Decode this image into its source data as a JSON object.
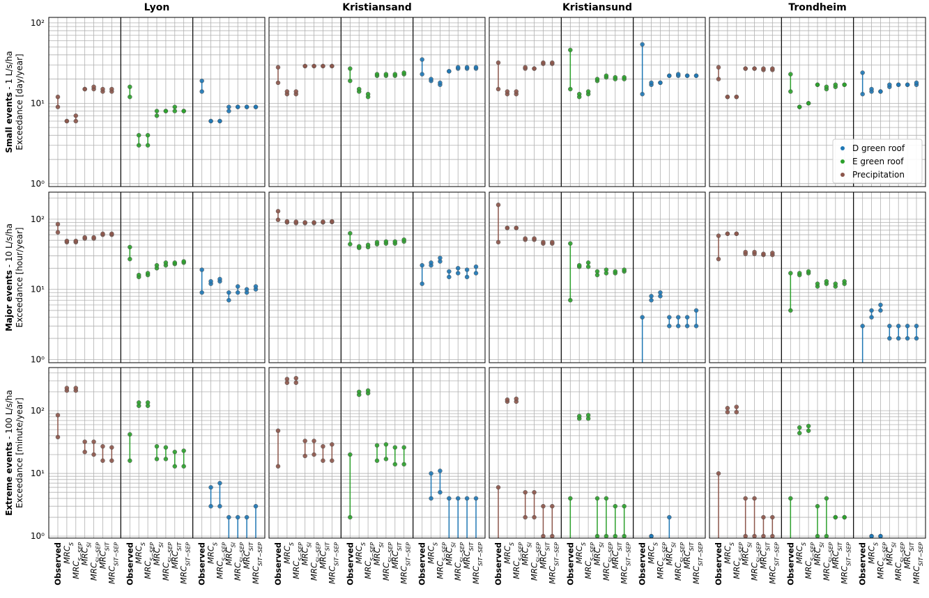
{
  "chart_data": {
    "type": "range",
    "yscale": "log",
    "grid": true,
    "legend": "lower right",
    "cities": [
      "Lyon",
      "Kristiansand",
      "Kristiansund",
      "Trondheim"
    ],
    "categories": [
      {
        "main": "Observed"
      },
      {
        "main": "MRC",
        "sub": "S"
      },
      {
        "main": "MRC",
        "sub": "S−SEP"
      },
      {
        "main": "MRC",
        "sub": "SI"
      },
      {
        "main": "MRC",
        "sub": "SI−SEP"
      },
      {
        "main": "MRC",
        "sub": "SIT"
      },
      {
        "main": "MRC",
        "sub": "SIT−SEP"
      }
    ],
    "series": [
      {
        "name": "D green roof",
        "color": "#1f77b4"
      },
      {
        "name": "E green roof",
        "color": "#2ca02c"
      },
      {
        "name": "Precipitation",
        "color": "#8c564b"
      }
    ],
    "yminorticks": [
      2,
      3,
      4,
      5,
      6,
      7,
      8,
      9,
      20,
      30,
      40,
      50,
      60,
      70,
      80,
      90,
      200,
      300,
      400,
      500,
      600,
      700,
      800,
      900
    ],
    "rows": [
      {
        "title_bold": "Small events",
        "title_rest": " - 1 L/s/ha",
        "ylabel": "Exceedance [day/year]",
        "ylim": [
          0.92,
          117
        ],
        "yticks": [
          {
            "value": 1,
            "label": "10⁰"
          },
          {
            "value": 10,
            "label": "10¹"
          },
          {
            "value": 100,
            "label": "10²"
          }
        ],
        "data": [
          [
            {
              "low": [
                14,
                6,
                6,
                8,
                9,
                9,
                9
              ],
              "high": [
                19,
                6,
                6,
                9,
                9,
                9,
                9
              ]
            },
            {
              "low": [
                12,
                3,
                3,
                7,
                8,
                8,
                8
              ],
              "high": [
                16,
                4,
                4,
                8,
                8,
                9,
                8
              ]
            },
            {
              "low": [
                9,
                6,
                6,
                15,
                15,
                14,
                14
              ],
              "high": [
                12,
                6,
                7,
                15,
                16,
                15,
                15
              ]
            }
          ],
          [
            {
              "low": [
                23,
                19,
                17,
                25,
                27,
                27,
                27
              ],
              "high": [
                35,
                20,
                18,
                25,
                28,
                28,
                28
              ]
            },
            {
              "low": [
                19,
                14,
                12,
                22,
                22,
                22,
                23
              ],
              "high": [
                27,
                15,
                13,
                23,
                23,
                23,
                24
              ]
            },
            {
              "low": [
                18,
                13,
                13,
                29,
                29,
                29,
                29
              ],
              "high": [
                28,
                14,
                14,
                29,
                29,
                29,
                29
              ]
            }
          ],
          [
            {
              "low": [
                13,
                17,
                18,
                22,
                22,
                22,
                22
              ],
              "high": [
                54,
                18,
                18,
                22,
                23,
                22,
                22
              ]
            },
            {
              "low": [
                15,
                12,
                13,
                19,
                21,
                20,
                20
              ],
              "high": [
                46,
                13,
                14,
                20,
                22,
                21,
                21
              ]
            },
            {
              "low": [
                15,
                13,
                13,
                27,
                27,
                31,
                31
              ],
              "high": [
                32,
                14,
                14,
                28,
                27,
                32,
                32
              ]
            }
          ],
          [
            {
              "low": [
                13,
                14,
                14,
                16,
                17,
                17,
                17
              ],
              "high": [
                24,
                15,
                14,
                17,
                17,
                17,
                18
              ]
            },
            {
              "low": [
                14,
                9,
                10,
                17,
                15,
                16,
                17
              ],
              "high": [
                23,
                9,
                10,
                17,
                16,
                17,
                17
              ]
            },
            {
              "low": [
                20,
                12,
                12,
                27,
                27,
                26,
                26
              ],
              "high": [
                28,
                12,
                12,
                27,
                27,
                27,
                27
              ]
            }
          ]
        ]
      },
      {
        "title_bold": "Major events",
        "title_rest": " - 10 L/s/ha",
        "ylabel": "Exceedance [hour/year]",
        "ylim": [
          0.9,
          243
        ],
        "yticks": [
          {
            "value": 1,
            "label": "10⁰"
          },
          {
            "value": 10,
            "label": "10¹"
          },
          {
            "value": 100,
            "label": "10²"
          }
        ],
        "data": [
          [
            {
              "low": [
                9,
                12,
                13,
                7,
                9,
                9,
                10
              ],
              "high": [
                19,
                13,
                14,
                9,
                11,
                10,
                11
              ]
            },
            {
              "low": [
                27,
                15,
                16,
                20,
                22,
                23,
                24
              ],
              "high": [
                40,
                16,
                17,
                22,
                24,
                24,
                25
              ]
            },
            {
              "low": [
                65,
                47,
                47,
                53,
                53,
                60,
                60
              ],
              "high": [
                85,
                49,
                49,
                55,
                55,
                62,
                62
              ]
            }
          ],
          [
            {
              "low": [
                12,
                22,
                25,
                15,
                17,
                15,
                17
              ],
              "high": [
                22,
                24,
                28,
                18,
                20,
                19,
                21
              ]
            },
            {
              "low": [
                44,
                39,
                40,
                44,
                45,
                45,
                48
              ],
              "high": [
                63,
                41,
                43,
                47,
                48,
                48,
                51
              ]
            },
            {
              "low": [
                98,
                90,
                88,
                88,
                88,
                90,
                91
              ],
              "high": [
                130,
                93,
                92,
                90,
                90,
                92,
                93
              ]
            }
          ],
          [
            {
              "low": [
                0,
                7,
                8,
                3,
                3,
                3,
                3
              ],
              "high": [
                4,
                8,
                9,
                4,
                4,
                4,
                5
              ]
            },
            {
              "low": [
                7,
                21,
                21,
                16,
                17,
                17,
                18
              ],
              "high": [
                45,
                22,
                24,
                18,
                19,
                18,
                19
              ]
            },
            {
              "low": [
                47,
                75,
                75,
                51,
                51,
                45,
                45
              ],
              "high": [
                160,
                75,
                75,
                53,
                53,
                47,
                47
              ]
            }
          ],
          [
            {
              "low": [
                0,
                4,
                5,
                2,
                2,
                2,
                2
              ],
              "high": [
                3,
                5,
                6,
                3,
                3,
                3,
                3
              ]
            },
            {
              "low": [
                5,
                16,
                17,
                11,
                12,
                11,
                12
              ],
              "high": [
                17,
                17,
                18,
                12,
                13,
                12,
                13
              ]
            },
            {
              "low": [
                27,
                62,
                62,
                32,
                32,
                31,
                31
              ],
              "high": [
                58,
                62,
                62,
                34,
                34,
                32,
                33
              ]
            }
          ]
        ]
      },
      {
        "title_bold": "Extreme events",
        "title_rest": " - 100 L/s/ha",
        "ylabel": "Exceedance [minute/year]",
        "ylim": [
          0.93,
          488
        ],
        "yticks": [
          {
            "value": 1,
            "label": "10⁰"
          },
          {
            "value": 10,
            "label": "10¹"
          },
          {
            "value": 100,
            "label": "10²"
          }
        ],
        "data": [
          [
            {
              "low": [
                null,
                3,
                3,
                0,
                0,
                0,
                0
              ],
              "high": [
                null,
                6,
                7,
                2,
                2,
                2,
                3
              ]
            },
            {
              "low": [
                16,
                120,
                120,
                17,
                17,
                13,
                13
              ],
              "high": [
                42,
                135,
                135,
                27,
                26,
                22,
                23
              ]
            },
            {
              "low": [
                38,
                210,
                210,
                22,
                20,
                16,
                16
              ],
              "high": [
                85,
                230,
                230,
                32,
                32,
                27,
                26
              ]
            }
          ],
          [
            {
              "low": [
                null,
                4,
                5,
                0,
                0,
                0,
                0
              ],
              "high": [
                null,
                10,
                11,
                4,
                4,
                4,
                4
              ]
            },
            {
              "low": [
                2,
                180,
                190,
                16,
                17,
                14,
                14
              ],
              "high": [
                20,
                200,
                210,
                28,
                29,
                26,
                26
              ]
            },
            {
              "low": [
                13,
                280,
                280,
                19,
                20,
                16,
                16
              ],
              "high": [
                48,
                320,
                330,
                33,
                33,
                27,
                29
              ]
            }
          ],
          [
            {
              "low": [
                null,
                1,
                null,
                0,
                null,
                null,
                null
              ],
              "high": [
                null,
                1,
                null,
                2,
                null,
                null,
                null
              ]
            },
            {
              "low": [
                0,
                75,
                75,
                1,
                1,
                1,
                1
              ],
              "high": [
                4,
                82,
                85,
                4,
                4,
                3,
                3
              ]
            },
            {
              "low": [
                0,
                140,
                140,
                2,
                2,
                1,
                1
              ],
              "high": [
                6,
                150,
                155,
                5,
                5,
                3,
                3
              ]
            }
          ],
          [
            {
              "low": [
                null,
                1,
                1,
                null,
                null,
                null,
                null
              ],
              "high": [
                null,
                1,
                1,
                null,
                null,
                null,
                null
              ]
            },
            {
              "low": [
                0,
                44,
                48,
                1,
                1,
                2,
                2
              ],
              "high": [
                4,
                54,
                57,
                3,
                4,
                2,
                2
              ]
            },
            {
              "low": [
                0,
                95,
                95,
                1,
                1,
                1,
                1
              ],
              "high": [
                10,
                110,
                115,
                4,
                4,
                2,
                2
              ]
            }
          ]
        ]
      }
    ]
  }
}
